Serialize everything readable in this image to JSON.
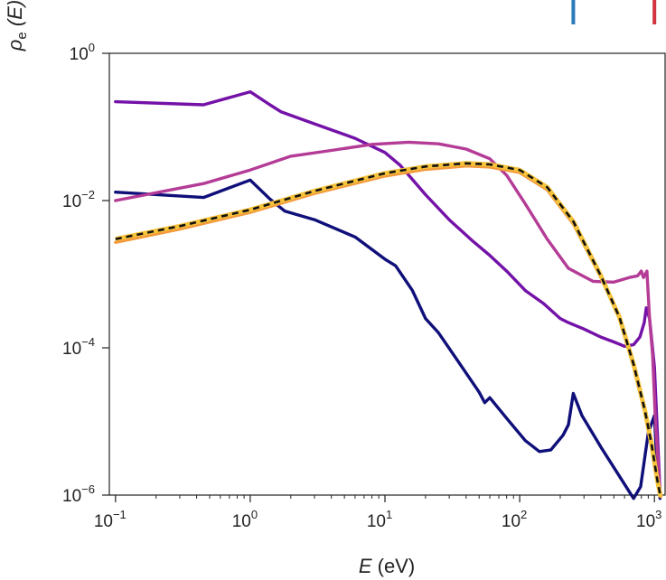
{
  "chart_data": {
    "type": "line",
    "title": "",
    "xlabel": {
      "symbol": "E",
      "unit": " (eV)"
    },
    "ylabel": {
      "symbol": "ρ",
      "sub": "e",
      "arg": " (E)"
    },
    "x_scale": "log",
    "y_scale": "log",
    "xlim": [
      0.09,
      1200
    ],
    "ylim": [
      1e-06,
      1
    ],
    "grid": false,
    "x_ticks": [
      {
        "value": 0.1,
        "base": "10",
        "exp": "−1"
      },
      {
        "value": 1,
        "base": "10",
        "exp": "0"
      },
      {
        "value": 10,
        "base": "10",
        "exp": "1"
      },
      {
        "value": 100,
        "base": "10",
        "exp": "2"
      },
      {
        "value": 1000,
        "base": "10",
        "exp": "3"
      }
    ],
    "y_ticks": [
      {
        "value": 1,
        "base": "10",
        "exp": "0"
      },
      {
        "value": 0.01,
        "base": "10",
        "exp": "−2"
      },
      {
        "value": 0.0001,
        "base": "10",
        "exp": "−4"
      },
      {
        "value": 1e-06,
        "base": "10",
        "exp": "−6"
      }
    ],
    "legend_markers": [
      {
        "color": "#2b7bba",
        "x": 250
      },
      {
        "color": "#d1343e",
        "x": 1000
      }
    ],
    "series": [
      {
        "color": "#0f0f7a",
        "points": [
          [
            0.1,
            0.013
          ],
          [
            0.45,
            0.011
          ],
          [
            1.0,
            0.019
          ],
          [
            1.4,
            0.0105
          ],
          [
            1.8,
            0.0072
          ],
          [
            3,
            0.0055
          ],
          [
            6,
            0.0032
          ],
          [
            10,
            0.0016
          ],
          [
            12,
            0.0013
          ],
          [
            16,
            0.0006
          ],
          [
            20,
            0.00025
          ],
          [
            25,
            0.00016
          ],
          [
            35,
            6.5e-05
          ],
          [
            50,
            2.5e-05
          ],
          [
            55,
            1.8e-05
          ],
          [
            60,
            2.1e-05
          ],
          [
            80,
            1.1e-05
          ],
          [
            110,
            5.5e-06
          ],
          [
            140,
            3.9e-06
          ],
          [
            170,
            4.1e-06
          ],
          [
            210,
            6.5e-06
          ],
          [
            230,
            9e-06
          ],
          [
            250,
            2.4e-05
          ],
          [
            290,
            1.2e-05
          ],
          [
            400,
            4.5e-06
          ],
          [
            550,
            1.8e-06
          ],
          [
            700,
            9e-07
          ],
          [
            790,
            1.3e-06
          ],
          [
            900,
            7e-06
          ],
          [
            1000,
            1.2e-05
          ],
          [
            1050,
            2e-06
          ],
          [
            1100,
            9e-07
          ]
        ]
      },
      {
        "color": "#7412a8",
        "points": [
          [
            0.1,
            0.22
          ],
          [
            0.45,
            0.2
          ],
          [
            1.0,
            0.3
          ],
          [
            1.4,
            0.2
          ],
          [
            1.7,
            0.16
          ],
          [
            3,
            0.11
          ],
          [
            6,
            0.07
          ],
          [
            10,
            0.045
          ],
          [
            13,
            0.03
          ],
          [
            20,
            0.012
          ],
          [
            30,
            0.0055
          ],
          [
            45,
            0.0028
          ],
          [
            60,
            0.0018
          ],
          [
            80,
            0.0011
          ],
          [
            110,
            0.0006
          ],
          [
            150,
            0.0004
          ],
          [
            200,
            0.00025
          ],
          [
            230,
            0.00022
          ],
          [
            300,
            0.00018
          ],
          [
            400,
            0.00014
          ],
          [
            500,
            0.00012
          ],
          [
            600,
            0.000105
          ],
          [
            700,
            0.00011
          ],
          [
            780,
            0.00014
          ],
          [
            840,
            0.00022
          ],
          [
            870,
            0.00035
          ],
          [
            920,
            0.00025
          ],
          [
            1000,
            5.5e-05
          ],
          [
            1100,
            1.1e-06
          ]
        ]
      },
      {
        "color": "#b43c96",
        "points": [
          [
            0.1,
            0.01
          ],
          [
            0.45,
            0.017
          ],
          [
            1.0,
            0.026
          ],
          [
            2,
            0.04
          ],
          [
            4,
            0.048
          ],
          [
            8,
            0.058
          ],
          [
            15,
            0.062
          ],
          [
            25,
            0.059
          ],
          [
            40,
            0.05
          ],
          [
            60,
            0.037
          ],
          [
            80,
            0.022
          ],
          [
            110,
            0.009
          ],
          [
            160,
            0.003
          ],
          [
            230,
            0.0012
          ],
          [
            350,
            0.0008
          ],
          [
            500,
            0.00078
          ],
          [
            650,
            0.0009
          ],
          [
            750,
            0.00095
          ],
          [
            800,
            0.0011
          ],
          [
            830,
            0.0009
          ],
          [
            880,
            0.0011
          ],
          [
            920,
            0.00025
          ],
          [
            970,
            8e-05
          ],
          [
            1020,
            9e-06
          ],
          [
            1100,
            1.1e-06
          ]
        ]
      },
      {
        "color": "#f39a3c",
        "points": [
          [
            0.1,
            0.0027
          ],
          [
            0.3,
            0.0041
          ],
          [
            1,
            0.0069
          ],
          [
            3,
            0.0125
          ],
          [
            10,
            0.0215
          ],
          [
            20,
            0.0265
          ],
          [
            40,
            0.0295
          ],
          [
            60,
            0.0285
          ],
          [
            100,
            0.024
          ],
          [
            160,
            0.014
          ],
          [
            250,
            0.0048
          ],
          [
            400,
            0.0009
          ],
          [
            550,
            0.00025
          ],
          [
            700,
            5.5e-05
          ],
          [
            850,
            1.3e-05
          ],
          [
            950,
            4.5e-06
          ],
          [
            1050,
            1.5e-06
          ],
          [
            1110,
            9.5e-07
          ]
        ]
      },
      {
        "color": "#111111",
        "dashed": true,
        "points": [
          [
            0.1,
            0.003
          ],
          [
            0.3,
            0.0045
          ],
          [
            1,
            0.0075
          ],
          [
            3,
            0.0135
          ],
          [
            10,
            0.0235
          ],
          [
            20,
            0.029
          ],
          [
            40,
            0.032
          ],
          [
            60,
            0.031
          ],
          [
            100,
            0.026
          ],
          [
            160,
            0.0152
          ],
          [
            250,
            0.0052
          ],
          [
            400,
            0.00095
          ],
          [
            550,
            0.00026
          ],
          [
            700,
            6e-05
          ],
          [
            850,
            1.4e-05
          ],
          [
            950,
            5e-06
          ],
          [
            1050,
            1.6e-06
          ],
          [
            1110,
            9.5e-07
          ]
        ]
      }
    ]
  }
}
